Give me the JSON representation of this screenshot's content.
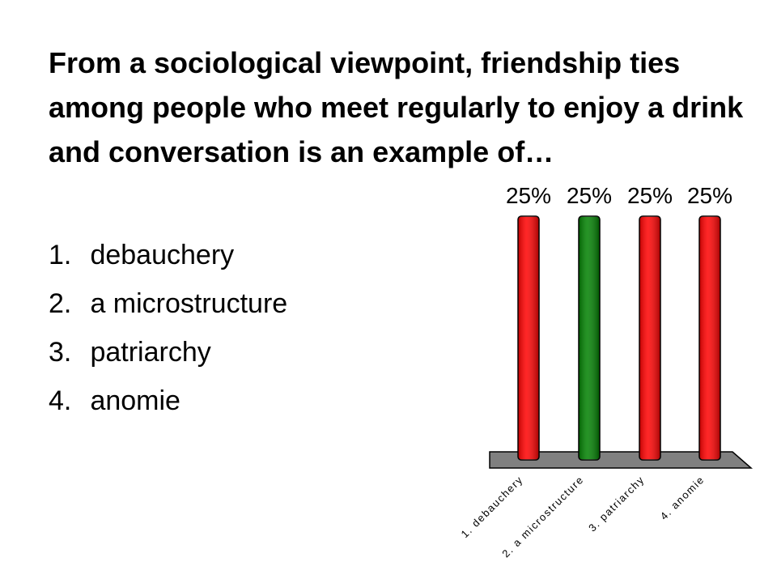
{
  "question": "From a sociological viewpoint, friendship ties among people who meet regularly to enjoy a drink and conversation is an example of…",
  "answers": [
    {
      "number": "1.",
      "text": "debauchery"
    },
    {
      "number": "2.",
      "text": "a microstructure"
    },
    {
      "number": "3.",
      "text": "patriarchy"
    },
    {
      "number": "4.",
      "text": "anomie"
    }
  ],
  "chart_data": {
    "type": "bar",
    "categories": [
      "1. debauchery",
      "2. a microstructure",
      "3. patriarchy",
      "4. anomie"
    ],
    "values": [
      25,
      25,
      25,
      25
    ],
    "data_labels": [
      "25%",
      "25%",
      "25%",
      "25%"
    ],
    "bar_colors": [
      "#ff0000",
      "#008000",
      "#ff0000",
      "#ff0000"
    ],
    "ylim": [
      0,
      25
    ],
    "title": "",
    "xlabel": "",
    "ylabel": "",
    "grid": false,
    "legend": "none"
  }
}
